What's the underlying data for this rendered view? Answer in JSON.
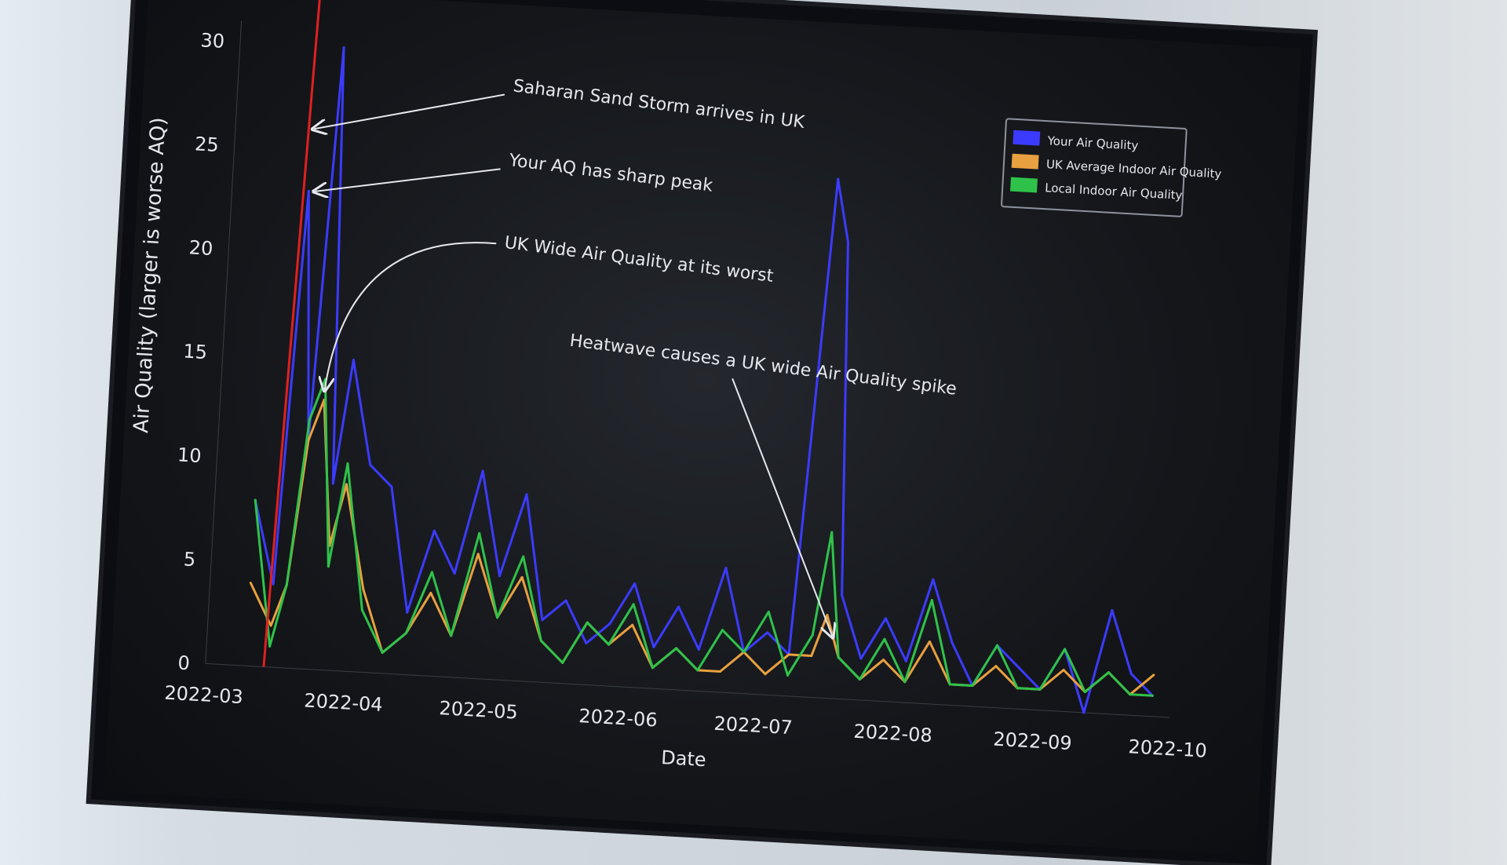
{
  "chart_data": {
    "type": "line",
    "xlabel": "Date",
    "ylabel": "Air Quality (larger is worse AQ)",
    "ylim": [
      0,
      31
    ],
    "xlim": [
      "2022-03-01",
      "2022-10-01"
    ],
    "yticks": [
      "0",
      "5",
      "10",
      "15",
      "20",
      "25",
      "30"
    ],
    "xticks": [
      "2022-03",
      "2022-04",
      "2022-05",
      "2022-06",
      "2022-07",
      "2022-08",
      "2022-09",
      "2022-10"
    ],
    "grid": false,
    "legend_placement": "top-right",
    "x": [
      "2022-03-10",
      "2022-03-15",
      "2022-03-18",
      "2022-03-21",
      "2022-03-24",
      "2022-03-27",
      "2022-03-30",
      "2022-04-04",
      "2022-04-09",
      "2022-04-14",
      "2022-04-19",
      "2022-04-24",
      "2022-04-29",
      "2022-05-04",
      "2022-05-09",
      "2022-05-14",
      "2022-05-19",
      "2022-05-24",
      "2022-05-29",
      "2022-06-03",
      "2022-06-08",
      "2022-06-13",
      "2022-06-18",
      "2022-06-23",
      "2022-06-28",
      "2022-07-03",
      "2022-07-08",
      "2022-07-13",
      "2022-07-16",
      "2022-07-19",
      "2022-07-24",
      "2022-07-29",
      "2022-08-03",
      "2022-08-08",
      "2022-08-13",
      "2022-08-18",
      "2022-08-23",
      "2022-08-28",
      "2022-09-02",
      "2022-09-07",
      "2022-09-12",
      "2022-09-17",
      "2022-09-22",
      "2022-09-27"
    ],
    "series": [
      {
        "name": "Your Air Quality",
        "color": "#3b3bff",
        "values": [
          8,
          4,
          23,
          11,
          30,
          9,
          15,
          10,
          9,
          3,
          7,
          5,
          10,
          5,
          9,
          3,
          4,
          2,
          3,
          5,
          2,
          4,
          2,
          6,
          2,
          3,
          2,
          25,
          22,
          5,
          2,
          4,
          2,
          6,
          3,
          1,
          3,
          2,
          1,
          3,
          0,
          5,
          2,
          1
        ]
      },
      {
        "name": "UK Average Indoor Air Quality",
        "color": "#e8a040",
        "values": [
          4,
          2,
          4,
          11,
          13,
          6,
          9,
          4,
          1,
          2,
          4,
          2,
          6,
          3,
          5,
          2,
          1,
          3,
          2,
          3,
          1,
          2,
          1,
          1,
          2,
          1,
          2,
          2,
          4,
          2,
          1,
          2,
          1,
          3,
          1,
          1,
          2,
          1,
          1,
          2,
          1,
          2,
          1,
          2
        ]
      },
      {
        "name": "Local Indoor Air Quality",
        "color": "#2fc24a",
        "values": [
          8,
          1,
          4,
          12,
          14,
          5,
          10,
          3,
          1,
          2,
          5,
          2,
          7,
          3,
          6,
          2,
          1,
          3,
          2,
          4,
          1,
          2,
          1,
          3,
          2,
          4,
          1,
          3,
          8,
          2,
          1,
          3,
          1,
          5,
          1,
          1,
          3,
          1,
          1,
          3,
          1,
          2,
          1,
          1
        ]
      }
    ],
    "vline": {
      "date": "2022-03-16",
      "color": "#e02020"
    },
    "annotations": [
      {
        "text": "Saharan Sand Storm arrives in UK",
        "target": [
          "2022-03-17",
          26
        ]
      },
      {
        "text": "Your AQ has sharp peak",
        "target": [
          "2022-03-18",
          23
        ]
      },
      {
        "text": "UK Wide Air Quality at its worst",
        "target": [
          "2022-03-24",
          13.5
        ]
      },
      {
        "text": "Heatwave causes a UK wide Air Quality spike",
        "target": [
          "2022-07-16",
          3
        ]
      }
    ]
  }
}
